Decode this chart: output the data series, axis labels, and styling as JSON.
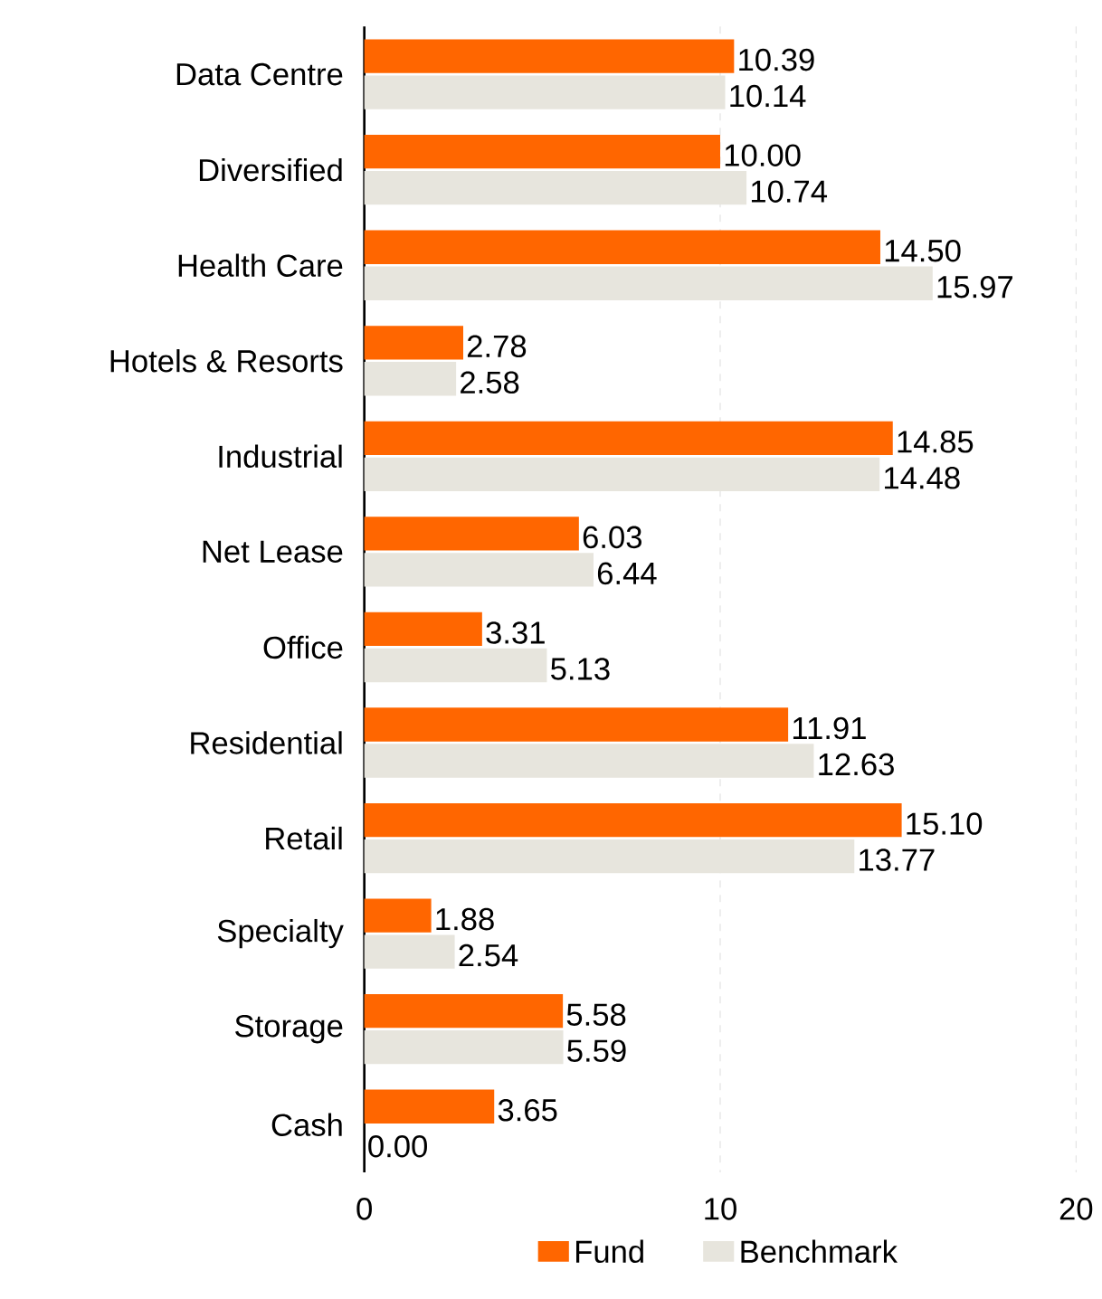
{
  "chart_data": {
    "type": "bar",
    "orientation": "horizontal",
    "categories": [
      "Data Centre",
      "Diversified",
      "Health Care",
      "Hotels & Resorts",
      "Industrial",
      "Net Lease",
      "Office",
      "Residential",
      "Retail",
      "Specialty",
      "Storage",
      "Cash"
    ],
    "series": [
      {
        "name": "Fund",
        "color": "#ff6600",
        "values": [
          10.39,
          10.0,
          14.5,
          2.78,
          14.85,
          6.03,
          3.31,
          11.91,
          15.1,
          1.88,
          5.58,
          3.65
        ],
        "value_labels": [
          "10.39",
          "10.00",
          "14.50",
          "2.78",
          "14.85",
          "6.03",
          "3.31",
          "11.91",
          "15.10",
          "1.88",
          "5.58",
          "3.65"
        ]
      },
      {
        "name": "Benchmark",
        "color": "#e7e5dd",
        "values": [
          10.14,
          10.74,
          15.97,
          2.58,
          14.48,
          6.44,
          5.13,
          12.63,
          13.77,
          2.54,
          5.59,
          0.0
        ],
        "value_labels": [
          "10.14",
          "10.74",
          "15.97",
          "2.58",
          "14.48",
          "6.44",
          "5.13",
          "12.63",
          "13.77",
          "2.54",
          "5.59",
          "0.00"
        ]
      }
    ],
    "xlim": [
      0,
      20
    ],
    "xticks": [
      0,
      10,
      20
    ],
    "grid": "x",
    "legend": "bottom"
  }
}
